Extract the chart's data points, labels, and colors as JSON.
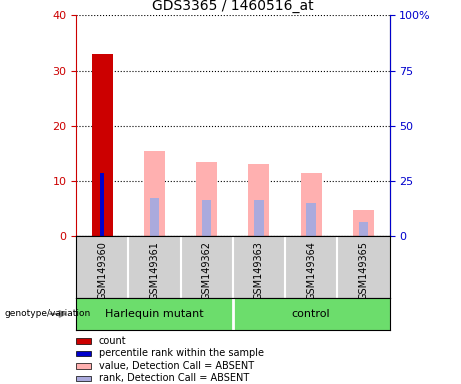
{
  "title": "GDS3365 / 1460516_at",
  "samples": [
    "GSM149360",
    "GSM149361",
    "GSM149362",
    "GSM149363",
    "GSM149364",
    "GSM149365"
  ],
  "group_labels": [
    "Harlequin mutant",
    "control"
  ],
  "group_split": 3,
  "count_values": [
    33,
    0,
    0,
    0,
    0,
    0
  ],
  "percentile_values": [
    11.5,
    0,
    0,
    0,
    0,
    0
  ],
  "absent_value_heights": [
    0,
    15.5,
    13.5,
    13,
    11.5,
    4.8
  ],
  "absent_rank_heights": [
    0,
    7,
    6.5,
    6.5,
    6,
    2.5
  ],
  "left_ylim": [
    0,
    40
  ],
  "right_ylim": [
    0,
    100
  ],
  "left_yticks": [
    0,
    10,
    20,
    30,
    40
  ],
  "right_yticks": [
    0,
    25,
    50,
    75,
    100
  ],
  "right_yticklabels": [
    "0",
    "25",
    "50",
    "75",
    "100%"
  ],
  "color_count": "#cc0000",
  "color_percentile": "#0000cc",
  "color_absent_value": "#ffb0b0",
  "color_absent_rank": "#aaaadd",
  "bar_width": 0.4,
  "legend_items": [
    {
      "color": "#cc0000",
      "label": "count"
    },
    {
      "color": "#0000cc",
      "label": "percentile rank within the sample"
    },
    {
      "color": "#ffb0b0",
      "label": "value, Detection Call = ABSENT"
    },
    {
      "color": "#aaaadd",
      "label": "rank, Detection Call = ABSENT"
    }
  ]
}
